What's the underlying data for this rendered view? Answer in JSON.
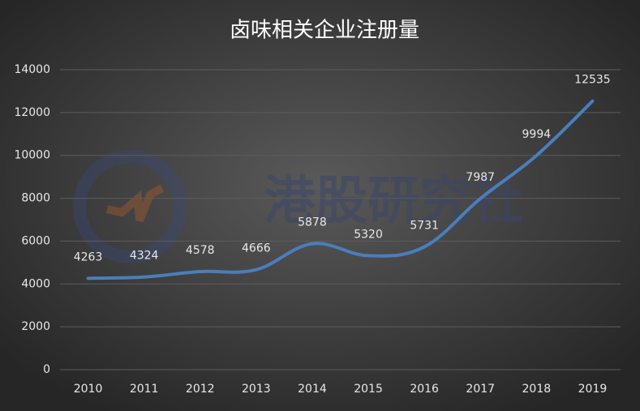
{
  "chart_data": {
    "type": "line",
    "title": "卤味相关企业注册量",
    "watermark": "港股研究社",
    "categories": [
      "2010",
      "2011",
      "2012",
      "2013",
      "2014",
      "2015",
      "2016",
      "2017",
      "2018",
      "2019"
    ],
    "values": [
      4263,
      4324,
      4578,
      4666,
      5878,
      5320,
      5731,
      7987,
      9994,
      12535
    ],
    "color": "#4a7ebb",
    "ylim": [
      0,
      14000
    ],
    "yticks": [
      0,
      2000,
      4000,
      6000,
      8000,
      10000,
      12000,
      14000
    ],
    "grid": true
  }
}
